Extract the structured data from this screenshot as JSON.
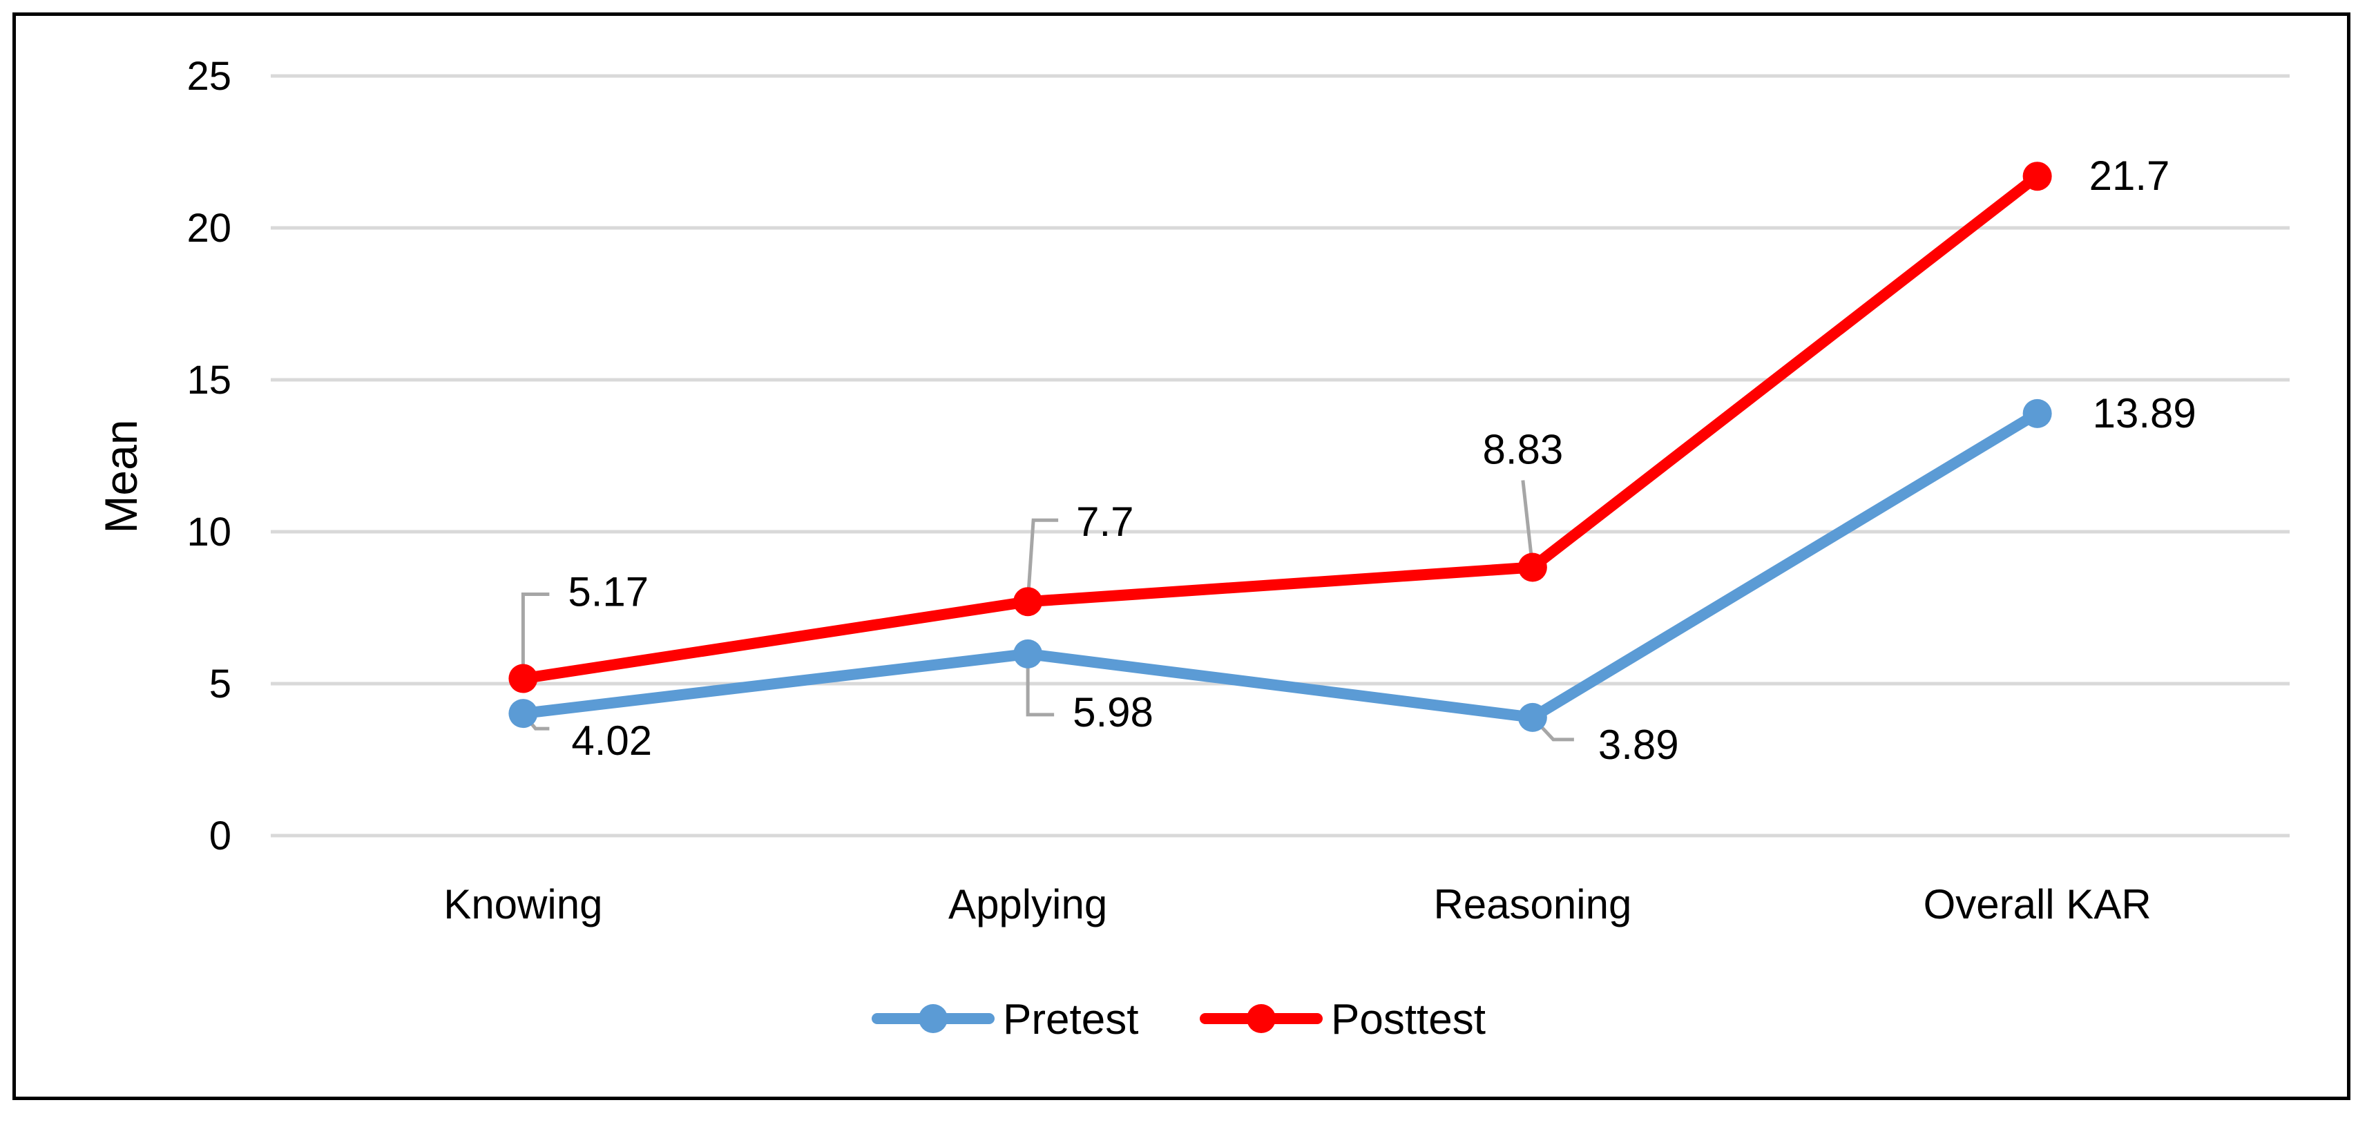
{
  "chart_data": {
    "type": "line",
    "title": "",
    "xlabel": "",
    "ylabel": "Mean",
    "ylim": [
      0,
      25
    ],
    "yticks": [
      0,
      5,
      10,
      15,
      20,
      25
    ],
    "grid": true,
    "legend": "bottom",
    "categories": [
      "Knowing",
      "Applying",
      "Reasoning",
      "Overall KAR"
    ],
    "series": [
      {
        "name": "Pretest",
        "color": "#5b9bd5",
        "values": [
          4.02,
          5.98,
          3.89,
          13.89
        ],
        "labels": [
          "4.02",
          "5.98",
          "3.89",
          "13.89"
        ]
      },
      {
        "name": "Posttest",
        "color": "#ff0000",
        "values": [
          5.17,
          7.7,
          8.83,
          21.7
        ],
        "labels": [
          "5.17",
          "7.7",
          "8.83",
          "21.7"
        ]
      }
    ]
  }
}
